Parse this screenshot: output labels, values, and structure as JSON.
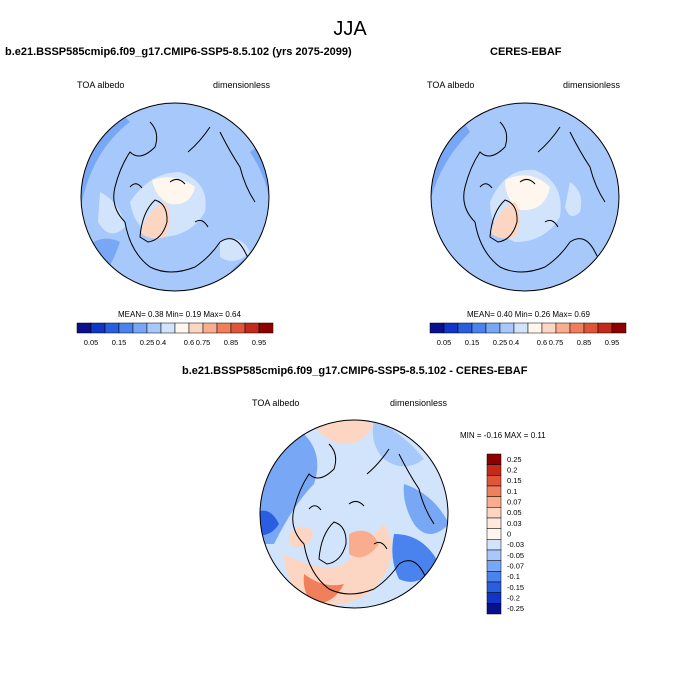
{
  "figure": {
    "title": "JJA"
  },
  "panels": [
    {
      "title": "b.e21.BSSP585cmip6.f09_g17.CMIP6-SSP5-8.5.102 (yrs 2075-2099)",
      "left_label": "TOA albedo",
      "right_label": "dimensionless",
      "stats": "MEAN=  0.38  Min=  0.19  Max=  0.64",
      "colorbar": {
        "labels": [
          "0.05",
          "0.15",
          "0.25",
          "0.4",
          "0.6",
          "0.75",
          "0.85",
          "0.95"
        ],
        "colors": [
          "#08108c",
          "#1035c8",
          "#2a5ee0",
          "#4a82ee",
          "#78a8f5",
          "#a6c8fa",
          "#d2e4fc",
          "#fff6ee",
          "#fcd6c2",
          "#f9ad8e",
          "#f0805c",
          "#e0553a",
          "#c42a1c",
          "#8e0000"
        ]
      }
    },
    {
      "title": "CERES-EBAF",
      "left_label": "TOA albedo",
      "right_label": "dimensionless",
      "stats": "MEAN=  0.40  Min=  0.26  Max=  0.69",
      "colorbar": {
        "labels": [
          "0.05",
          "0.15",
          "0.25",
          "0.4",
          "0.6",
          "0.75",
          "0.85",
          "0.95"
        ],
        "colors": [
          "#08108c",
          "#1035c8",
          "#2a5ee0",
          "#4a82ee",
          "#78a8f5",
          "#a6c8fa",
          "#d2e4fc",
          "#fff6ee",
          "#fcd6c2",
          "#f9ad8e",
          "#f0805c",
          "#e0553a",
          "#c42a1c",
          "#8e0000"
        ]
      }
    },
    {
      "title": "b.e21.BSSP585cmip6.f09_g17.CMIP6-SSP5-8.5.102 - CERES-EBAF",
      "left_label": "TOA albedo",
      "right_label": "dimensionless",
      "stats": "MIN =  -0.16 MAX =   0.11",
      "colorbar": {
        "labels": [
          "0.25",
          "0.2",
          "0.15",
          "0.1",
          "0.07",
          "0.05",
          "0.03",
          "0",
          "-0.03",
          "-0.05",
          "-0.07",
          "-0.1",
          "-0.15",
          "-0.2",
          "-0.25"
        ],
        "colors": [
          "#8e0000",
          "#c42a1c",
          "#e0553a",
          "#f0805c",
          "#f9ad8e",
          "#fcd6c2",
          "#fde9dd",
          "#fff6ee",
          "#d2e4fc",
          "#a6c8fa",
          "#78a8f5",
          "#4a82ee",
          "#2a5ee0",
          "#1035c8",
          "#08108c"
        ]
      }
    }
  ]
}
